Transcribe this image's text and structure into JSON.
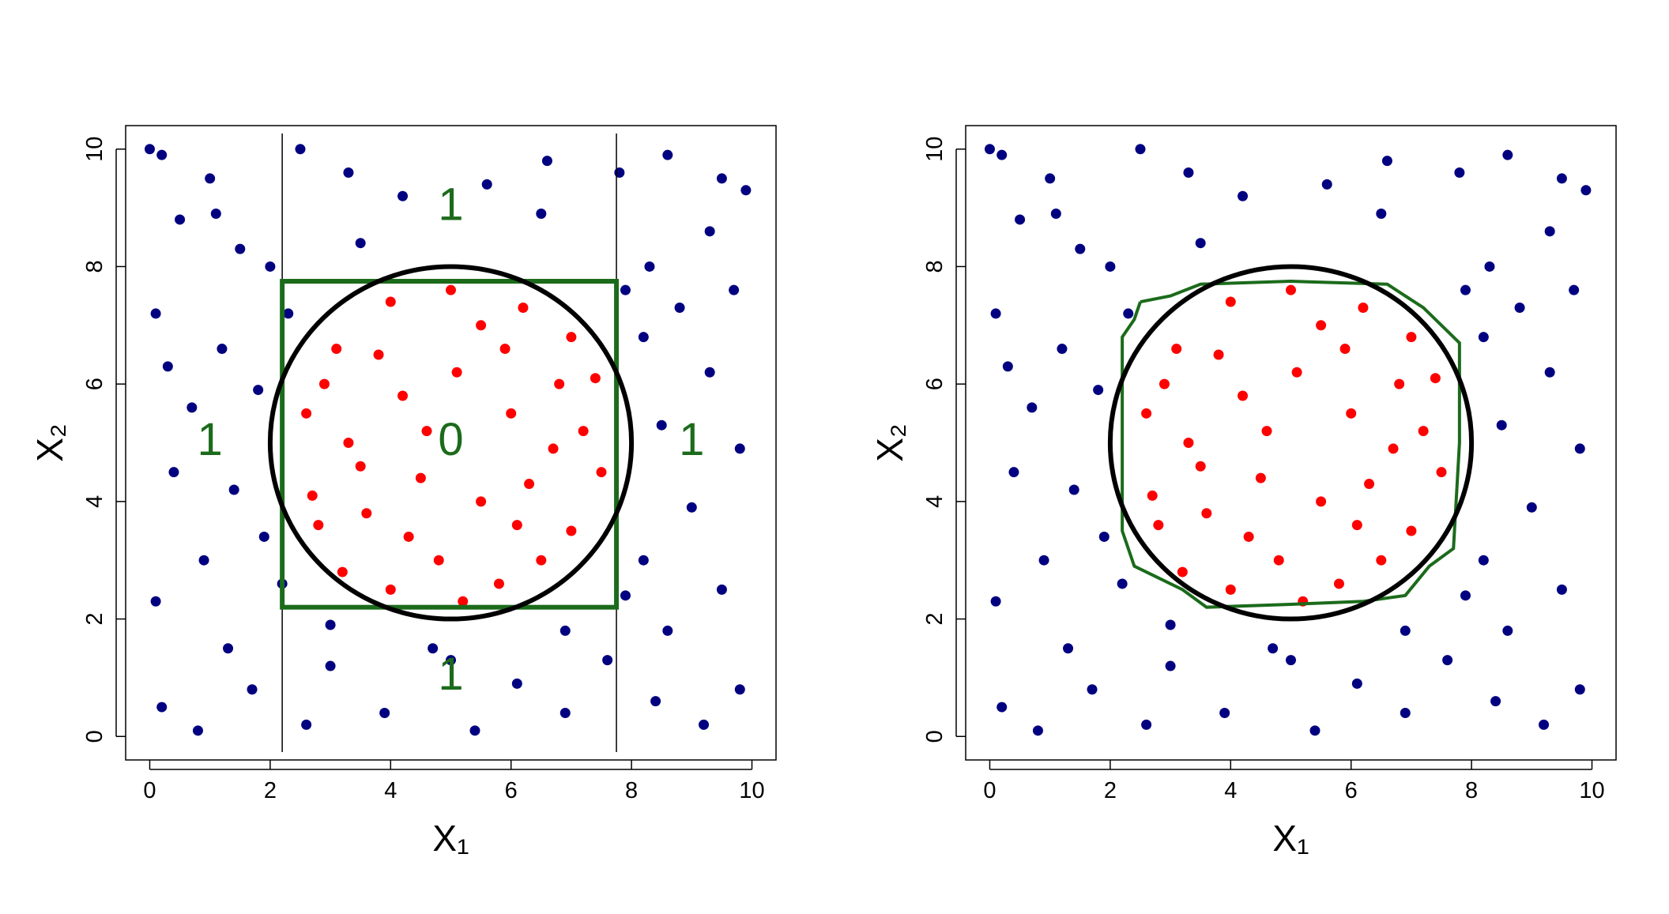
{
  "chart_data": [
    {
      "type": "scatter",
      "xlabel": "X₁",
      "ylabel": "X₂",
      "xlim": [
        -0.4,
        10.4
      ],
      "ylim": [
        -0.4,
        10.4
      ],
      "xticks": [
        0,
        2,
        4,
        6,
        8,
        10
      ],
      "yticks": [
        0,
        2,
        4,
        6,
        8,
        10
      ],
      "series": [
        {
          "color": "#000080",
          "x": [
            0,
            0.2,
            1.0,
            1.5,
            2.5,
            3.3,
            4.2,
            5.6,
            6.6,
            7.8,
            8.6,
            9.5,
            9.9,
            0.5,
            2.0,
            3.5,
            6.5,
            8.3,
            9.3,
            9.7,
            0.1,
            1.2,
            1.8,
            0.7,
            0.4,
            1.4,
            0.9,
            1.9,
            0.1,
            1.3,
            0.2,
            0.8,
            1.7,
            2.6,
            3.0,
            3.9,
            4.7,
            5.4,
            6.1,
            6.9,
            7.6,
            8.4,
            9.2,
            9.8,
            8.6,
            9.5,
            8.2,
            9.0,
            9.8,
            8.5,
            9.3,
            8.2,
            7.9,
            2.3,
            2.2,
            7.9,
            3.0,
            6.9,
            5.0,
            1.1,
            8.8,
            0.3
          ],
          "y": [
            10,
            9.9,
            9.5,
            8.3,
            10,
            9.6,
            9.2,
            9.4,
            9.8,
            9.6,
            9.9,
            9.5,
            9.3,
            8.8,
            8.0,
            8.4,
            8.9,
            8.0,
            8.6,
            7.6,
            7.2,
            6.6,
            5.9,
            5.6,
            4.5,
            4.2,
            3.0,
            3.4,
            2.3,
            1.5,
            0.5,
            0.1,
            0.8,
            0.2,
            1.2,
            0.4,
            1.5,
            0.1,
            0.9,
            0.4,
            1.3,
            0.6,
            0.2,
            0.8,
            1.8,
            2.5,
            3.0,
            3.9,
            4.9,
            5.3,
            6.2,
            6.8,
            7.6,
            7.2,
            2.6,
            2.4,
            1.9,
            1.8,
            1.3,
            8.9,
            7.3,
            6.3
          ]
        },
        {
          "color": "#ff0000",
          "x": [
            3.1,
            4.0,
            5.0,
            6.2,
            7.0,
            2.6,
            3.3,
            4.2,
            5.1,
            6.0,
            7.2,
            7.5,
            2.7,
            3.6,
            4.5,
            5.5,
            6.3,
            7.0,
            3.2,
            4.0,
            4.8,
            5.8,
            6.5,
            3.8,
            5.5,
            6.8,
            2.9,
            4.6,
            5.9,
            3.5,
            6.7,
            5.2,
            4.3,
            6.1,
            2.8,
            7.4
          ],
          "y": [
            6.6,
            7.4,
            7.6,
            7.3,
            6.8,
            5.5,
            5.0,
            5.8,
            6.2,
            5.5,
            5.2,
            4.5,
            4.1,
            3.8,
            4.4,
            4.0,
            4.3,
            3.5,
            2.8,
            2.5,
            3.0,
            2.6,
            3.0,
            6.5,
            7.0,
            6.0,
            6.0,
            5.2,
            6.6,
            4.6,
            4.9,
            2.3,
            3.4,
            3.6,
            3.6,
            6.1
          ]
        }
      ],
      "circle": {
        "cx": 5,
        "cy": 5,
        "r": 3
      },
      "vlines": [
        2.2,
        7.75
      ],
      "rect": {
        "x": [
          2.2,
          7.75
        ],
        "y": [
          2.2,
          7.75
        ],
        "color": "#1b6b1b"
      },
      "annotations": [
        {
          "text": "1",
          "x": 5,
          "y": 9
        },
        {
          "text": "1",
          "x": 1,
          "y": 5
        },
        {
          "text": "0",
          "x": 5,
          "y": 5
        },
        {
          "text": "1",
          "x": 9,
          "y": 5
        },
        {
          "text": "1",
          "x": 5,
          "y": 1
        }
      ]
    },
    {
      "type": "scatter",
      "xlabel": "X₁",
      "ylabel": "X₂",
      "xlim": [
        -0.4,
        10.4
      ],
      "ylim": [
        -0.4,
        10.4
      ],
      "xticks": [
        0,
        2,
        4,
        6,
        8,
        10
      ],
      "yticks": [
        0,
        2,
        4,
        6,
        8,
        10
      ],
      "series": [
        {
          "color": "#000080",
          "x": [
            0,
            0.2,
            1.0,
            1.5,
            2.5,
            3.3,
            4.2,
            5.6,
            6.6,
            7.8,
            8.6,
            9.5,
            9.9,
            0.5,
            2.0,
            3.5,
            6.5,
            8.3,
            9.3,
            9.7,
            0.1,
            1.2,
            1.8,
            0.7,
            0.4,
            1.4,
            0.9,
            1.9,
            0.1,
            1.3,
            0.2,
            0.8,
            1.7,
            2.6,
            3.0,
            3.9,
            4.7,
            5.4,
            6.1,
            6.9,
            7.6,
            8.4,
            9.2,
            9.8,
            8.6,
            9.5,
            8.2,
            9.0,
            9.8,
            8.5,
            9.3,
            8.2,
            7.9,
            2.3,
            2.2,
            7.9,
            3.0,
            6.9,
            5.0,
            1.1,
            8.8,
            0.3
          ],
          "y": [
            10,
            9.9,
            9.5,
            8.3,
            10,
            9.6,
            9.2,
            9.4,
            9.8,
            9.6,
            9.9,
            9.5,
            9.3,
            8.8,
            8.0,
            8.4,
            8.9,
            8.0,
            8.6,
            7.6,
            7.2,
            6.6,
            5.9,
            5.6,
            4.5,
            4.2,
            3.0,
            3.4,
            2.3,
            1.5,
            0.5,
            0.1,
            0.8,
            0.2,
            1.2,
            0.4,
            1.5,
            0.1,
            0.9,
            0.4,
            1.3,
            0.6,
            0.2,
            0.8,
            1.8,
            2.5,
            3.0,
            3.9,
            4.9,
            5.3,
            6.2,
            6.8,
            7.6,
            7.2,
            2.6,
            2.4,
            1.9,
            1.8,
            1.3,
            8.9,
            7.3,
            6.3
          ]
        },
        {
          "color": "#ff0000",
          "x": [
            3.1,
            4.0,
            5.0,
            6.2,
            7.0,
            2.6,
            3.3,
            4.2,
            5.1,
            6.0,
            7.2,
            7.5,
            2.7,
            3.6,
            4.5,
            5.5,
            6.3,
            7.0,
            3.2,
            4.0,
            4.8,
            5.8,
            6.5,
            3.8,
            5.5,
            6.8,
            2.9,
            4.6,
            5.9,
            3.5,
            6.7,
            5.2,
            4.3,
            6.1,
            2.8,
            7.4
          ],
          "y": [
            6.6,
            7.4,
            7.6,
            7.3,
            6.8,
            5.5,
            5.0,
            5.8,
            6.2,
            5.5,
            5.2,
            4.5,
            4.1,
            3.8,
            4.4,
            4.0,
            4.3,
            3.5,
            2.8,
            2.5,
            3.0,
            2.6,
            3.0,
            6.5,
            7.0,
            6.0,
            6.0,
            5.2,
            6.6,
            4.6,
            4.9,
            2.3,
            3.4,
            3.6,
            3.6,
            6.1
          ]
        }
      ],
      "circle": {
        "cx": 5,
        "cy": 5,
        "r": 3
      },
      "boundary": {
        "color": "#1b6b1b",
        "x": [
          2.5,
          3.0,
          3.5,
          5.0,
          6.6,
          7.2,
          7.6,
          7.8,
          7.8,
          7.7,
          7.3,
          6.9,
          6.2,
          5.0,
          3.6,
          3.2,
          2.4,
          2.2,
          2.2,
          2.2,
          2.4,
          2.5
        ],
        "y": [
          7.4,
          7.5,
          7.7,
          7.75,
          7.7,
          7.3,
          6.9,
          6.7,
          5.0,
          3.2,
          2.9,
          2.4,
          2.3,
          2.25,
          2.2,
          2.5,
          2.9,
          3.5,
          5.0,
          6.8,
          7.1,
          7.4
        ]
      }
    }
  ]
}
